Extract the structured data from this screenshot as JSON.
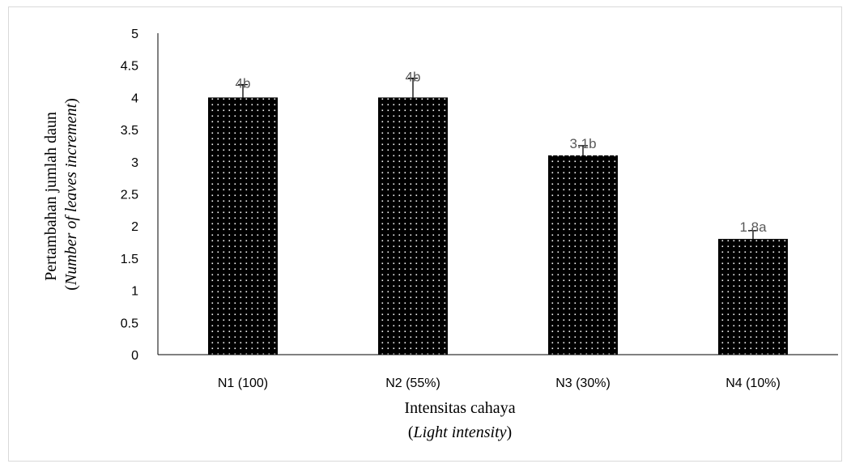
{
  "chart_data": {
    "type": "bar",
    "categories": [
      "N1 (100)",
      "N2 (55%)",
      "N3 (30%)",
      "N4 (10%)"
    ],
    "values": [
      4.0,
      4.0,
      3.1,
      1.8
    ],
    "errors": [
      0.2,
      0.3,
      0.15,
      0.13
    ],
    "data_labels": [
      "4b",
      "4b",
      "3.1b",
      "1.8a"
    ],
    "ylim": [
      0,
      5
    ],
    "yticks": [
      "0",
      "0.5",
      "1",
      "1.5",
      "2",
      "2.5",
      "3",
      "3.5",
      "4",
      "4.5",
      "5"
    ],
    "ylabel_line1": "Pertambahan jumlah daun",
    "ylabel_line2": "Number of leaves increment",
    "xlabel_line1": "Intensitas cahaya",
    "xlabel_line2": "Light intensity",
    "grid": false,
    "legend": "none",
    "colors": {
      "bar": "#000000",
      "dots": "#ffffff",
      "label": "#595959",
      "axis": "#000000"
    }
  }
}
